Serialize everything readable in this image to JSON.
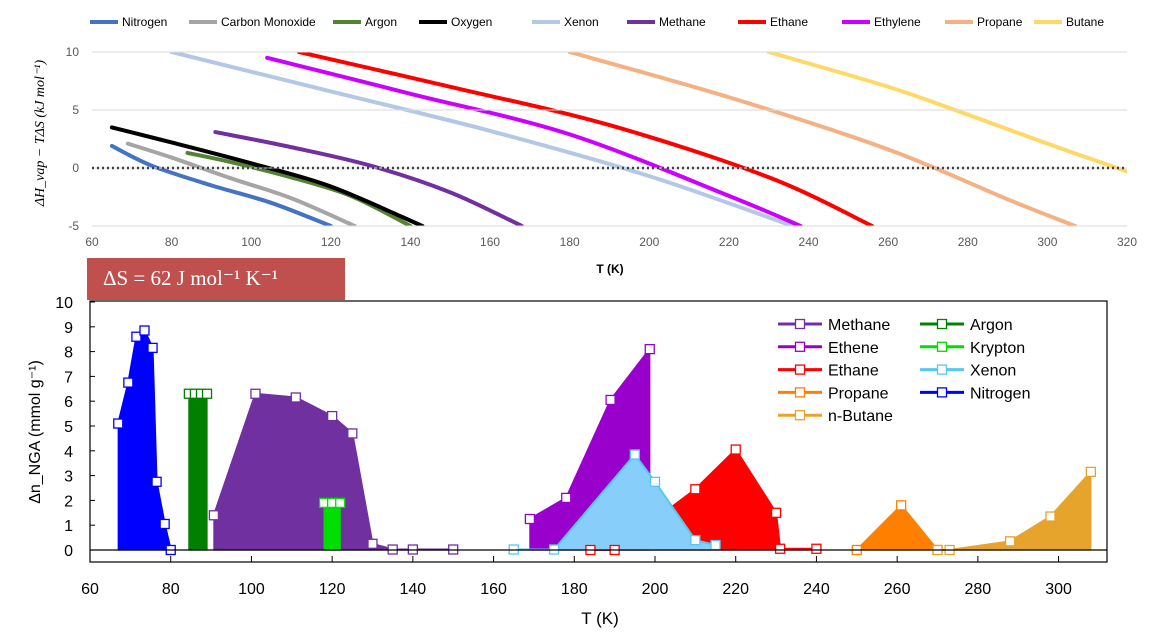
{
  "chart_data": [
    {
      "type": "line",
      "title": "",
      "xlabel": "T (K)",
      "ylabel": "ΔH_vap − TΔS (kJ mol⁻¹)",
      "xlim": [
        60,
        320
      ],
      "ylim": [
        -5,
        10
      ],
      "x_ticks": [
        60,
        80,
        100,
        120,
        140,
        160,
        180,
        200,
        220,
        240,
        260,
        280,
        300,
        320
      ],
      "y_ticks": [
        -5,
        0,
        5,
        10
      ],
      "grid": "horizontal",
      "legend_position": "top",
      "reference_line": {
        "y": 0,
        "style": "dotted"
      },
      "series": [
        {
          "name": "Nitrogen",
          "color": "#4472c4",
          "x": [
            65,
            75,
            90,
            105,
            120
          ],
          "y": [
            1.9,
            0.2,
            -1.5,
            -3.0,
            -5.0
          ]
        },
        {
          "name": "Carbon Monoxide",
          "color": "#a5a5a5",
          "x": [
            69,
            80,
            95,
            110,
            126
          ],
          "y": [
            2.1,
            0.9,
            -0.9,
            -2.6,
            -5.0
          ]
        },
        {
          "name": "Argon",
          "color": "#548235",
          "x": [
            84,
            95,
            110,
            125,
            140
          ],
          "y": [
            1.3,
            0.5,
            -0.8,
            -2.4,
            -5.0
          ]
        },
        {
          "name": "Oxygen",
          "color": "#000000",
          "x": [
            65,
            80,
            100,
            120,
            143
          ],
          "y": [
            3.5,
            2.2,
            0.4,
            -1.6,
            -5.0
          ]
        },
        {
          "name": "Xenon",
          "color": "#b4c7e7",
          "x": [
            80,
            120,
            160,
            200,
            236
          ],
          "y": [
            10.0,
            6.6,
            3.2,
            -0.7,
            -5.0
          ]
        },
        {
          "name": "Methane",
          "color": "#7030a0",
          "x": [
            91,
            110,
            130,
            150,
            168
          ],
          "y": [
            3.1,
            1.8,
            0.2,
            -2.1,
            -5.0
          ]
        },
        {
          "name": "Ethane",
          "color": "#ff0000",
          "x": [
            112,
            150,
            190,
            230,
            256
          ],
          "y": [
            10.0,
            7.0,
            3.7,
            -0.8,
            -5.0
          ]
        },
        {
          "name": "Ethylene",
          "color": "#cc00ff",
          "x": [
            104,
            140,
            180,
            220,
            238
          ],
          "y": [
            9.5,
            6.4,
            2.9,
            -2.4,
            -5.0
          ]
        },
        {
          "name": "Propane",
          "color": "#f4b183",
          "x": [
            180,
            220,
            260,
            290,
            307
          ],
          "y": [
            10.0,
            6.1,
            1.6,
            -2.7,
            -5.0
          ]
        },
        {
          "name": "Butane",
          "color": "#ffd966",
          "x": [
            230,
            260,
            280,
            300,
            320
          ],
          "y": [
            10.0,
            7.0,
            4.6,
            2.1,
            -0.3
          ]
        }
      ]
    },
    {
      "type": "area",
      "title": "",
      "xlabel": "T (K)",
      "ylabel": "Δn_NGA (mmol g⁻¹)",
      "xlim": [
        60,
        312
      ],
      "ylim": [
        0,
        10
      ],
      "x_ticks": [
        60,
        80,
        100,
        120,
        140,
        160,
        180,
        200,
        220,
        240,
        260,
        280,
        300
      ],
      "y_ticks": [
        0,
        1,
        2,
        3,
        4,
        5,
        6,
        7,
        8,
        9,
        10
      ],
      "grid": false,
      "legend_position": "top-right",
      "series": [
        {
          "name": "Methane",
          "color": "#7030a0",
          "fill": "#7030a0",
          "x": [
            90.7,
            101,
            111,
            120,
            125,
            130,
            135,
            140,
            150
          ],
          "y": [
            1.4,
            6.3,
            6.15,
            5.4,
            4.7,
            0.25,
            0.02,
            0.02,
            0.02
          ]
        },
        {
          "name": "Argon",
          "color": "#008000",
          "fill": "#008000",
          "x": [
            84.5,
            86,
            87.5,
            89
          ],
          "y": [
            6.3,
            6.3,
            6.3,
            6.3
          ]
        },
        {
          "name": "Ethene",
          "color": "#9900cc",
          "fill": "#9900cc",
          "x": [
            169,
            178,
            189,
            198.7
          ],
          "y": [
            1.25,
            2.1,
            6.05,
            8.1
          ]
        },
        {
          "name": "Krypton",
          "color": "#00dd00",
          "fill": "#00dd00",
          "x": [
            118,
            120,
            122
          ],
          "y": [
            1.9,
            1.9,
            1.9
          ]
        },
        {
          "name": "Ethane",
          "color": "#ff0000",
          "fill": "#ff0000",
          "x": [
            184,
            190,
            210,
            220,
            230,
            231,
            240
          ],
          "y": [
            0.0,
            0.0,
            2.45,
            4.05,
            1.5,
            0.05,
            0.05
          ]
        },
        {
          "name": "Xenon",
          "color": "#55c8f0",
          "fill": "#87cefa",
          "x": [
            165,
            175,
            195,
            200,
            210,
            215
          ],
          "y": [
            0.02,
            0.02,
            3.85,
            2.75,
            0.4,
            0.2
          ]
        },
        {
          "name": "Propane",
          "color": "#ff8000",
          "fill": "#ff8000",
          "x": [
            250,
            261,
            270
          ],
          "y": [
            0.0,
            1.8,
            0.0
          ]
        },
        {
          "name": "Nitrogen",
          "color": "#0000ff",
          "fill": "#0000ff",
          "x": [
            67,
            69.5,
            71.5,
            73.5,
            75.5,
            76.5,
            78.5,
            80
          ],
          "y": [
            5.1,
            6.75,
            8.6,
            8.85,
            8.15,
            2.75,
            1.05,
            0.0
          ]
        },
        {
          "name": "n-Butane",
          "color": "#e6a42c",
          "fill": "#e6a42c",
          "x": [
            270,
            273,
            288,
            298,
            308
          ],
          "y": [
            0.0,
            0.0,
            0.35,
            1.35,
            3.15
          ]
        }
      ]
    }
  ],
  "annotation": {
    "text": "ΔS = 62 J mol⁻¹ K⁻¹",
    "background": "#c0504d",
    "color": "#ffffff"
  },
  "colors": {
    "axis": "#000000",
    "grid": "#d9d9d9",
    "dotted_zero": "#404040"
  }
}
